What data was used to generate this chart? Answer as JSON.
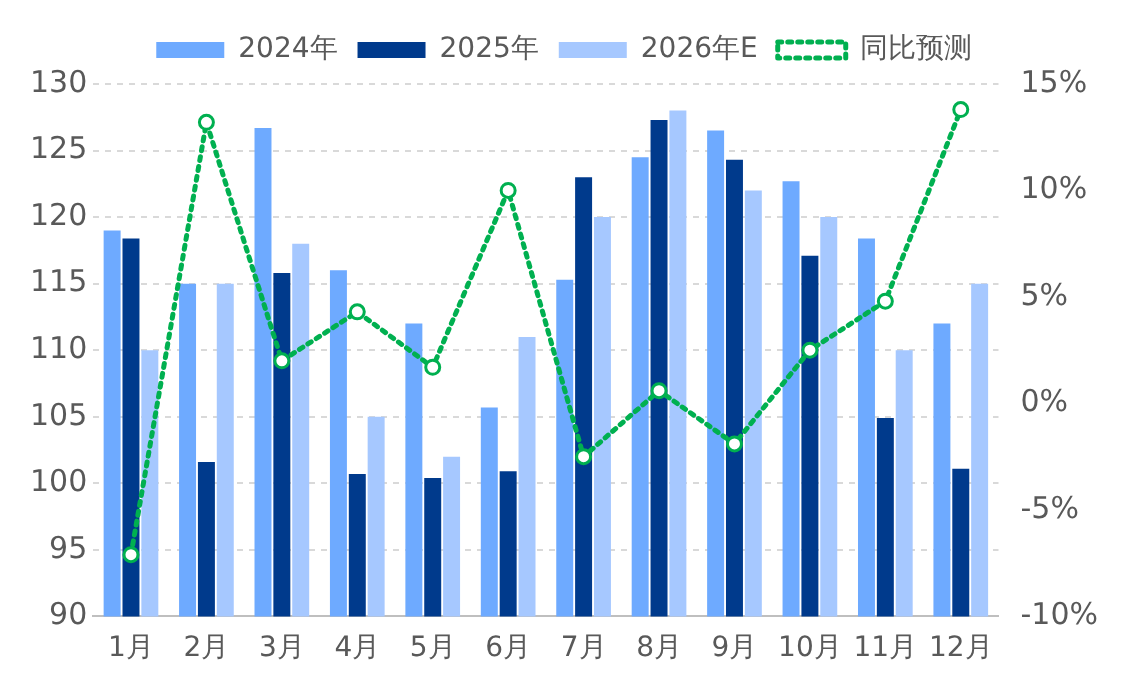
{
  "chart_data": {
    "type": "bar",
    "categories": [
      "1月",
      "2月",
      "3月",
      "4月",
      "5月",
      "6月",
      "7月",
      "8月",
      "9月",
      "10月",
      "11月",
      "12月"
    ],
    "series": [
      {
        "name": "2024年",
        "color": "#6eaaff",
        "values": [
          119,
          115,
          126.7,
          116,
          112,
          105.7,
          115.3,
          124.5,
          126.5,
          122.7,
          118.4,
          112
        ]
      },
      {
        "name": "2025年",
        "color": "#003a8c",
        "values": [
          118.4,
          101.6,
          115.8,
          100.7,
          100.4,
          100.9,
          123,
          127.3,
          124.3,
          117.1,
          104.9,
          101.1
        ]
      },
      {
        "name": "2026年E",
        "color": "#a6c8ff",
        "values": [
          110,
          115,
          118,
          105,
          102,
          111,
          120,
          128,
          122,
          120,
          110,
          115
        ]
      },
      {
        "name": "同比预测",
        "type": "line",
        "axis": "y2",
        "color": "#00b050",
        "marker": "circle",
        "line_style": "dotted",
        "values": [
          -7.1,
          13.2,
          2.0,
          4.3,
          1.7,
          10.0,
          -2.5,
          0.6,
          -1.9,
          2.5,
          4.8,
          13.8
        ]
      }
    ],
    "ylim": [
      90,
      130
    ],
    "yticks": [
      90,
      95,
      100,
      105,
      110,
      115,
      120,
      125,
      130
    ],
    "y2lim": [
      -10,
      15
    ],
    "y2ticks": [
      {
        "value": -10,
        "label": "-10%"
      },
      {
        "value": -5,
        "label": "-5%"
      },
      {
        "value": 0,
        "label": "0%"
      },
      {
        "value": 5,
        "label": "5%"
      },
      {
        "value": 10,
        "label": "10%"
      },
      {
        "value": 15,
        "label": "15%"
      }
    ],
    "grid": "y",
    "legend": "top"
  }
}
